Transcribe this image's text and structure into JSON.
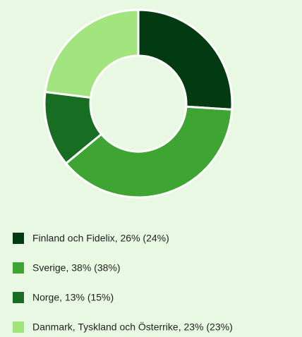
{
  "chart_data": {
    "type": "donut",
    "categories": [
      "Finland och Fidelix, 26% (24%)",
      "Sverige, 38% (38%)",
      "Norge, 13% (15%)",
      "Danmark, Tyskland och Österrike, 23% (23%)"
    ],
    "values": [
      26,
      38,
      13,
      23
    ],
    "colors": [
      "#023a12",
      "#3ea532",
      "#176d22",
      "#a2e47e"
    ],
    "legend": "bottom"
  }
}
